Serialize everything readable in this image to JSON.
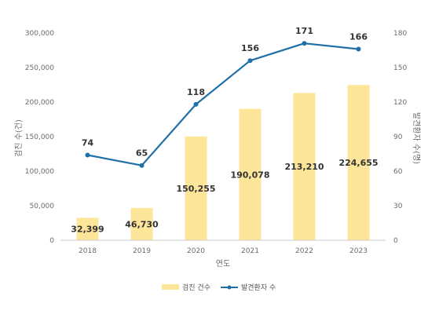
{
  "chart_data": {
    "type": "bar",
    "categories": [
      "2018",
      "2019",
      "2020",
      "2021",
      "2022",
      "2023"
    ],
    "series": [
      {
        "name": "검진 건수",
        "type": "bar",
        "axis": "left",
        "color": "#fde59a",
        "values": [
          32399,
          46730,
          150255,
          190078,
          213210,
          224655
        ],
        "labels": [
          "32,399",
          "46,730",
          "150,255",
          "190,078",
          "213,210",
          "224,655"
        ]
      },
      {
        "name": "발견환자 수",
        "type": "line",
        "axis": "right",
        "color": "#1f6fa8",
        "values": [
          74,
          65,
          118,
          156,
          171,
          166
        ],
        "labels": [
          "74",
          "65",
          "118",
          "156",
          "171",
          "166"
        ]
      }
    ],
    "xlabel": "연도",
    "ylabel": "검진 수(건)",
    "y2label": "발견환자 수(명)",
    "ylim": [
      0,
      300000
    ],
    "y2lim": [
      0,
      180
    ],
    "yticks": [
      "0",
      "50,000",
      "100,000",
      "150,000",
      "200,000",
      "250,000",
      "300,000"
    ],
    "y2ticks": [
      "0",
      "30",
      "60",
      "90",
      "120",
      "150",
      "180"
    ],
    "grid": false,
    "legend_position": "bottom"
  }
}
